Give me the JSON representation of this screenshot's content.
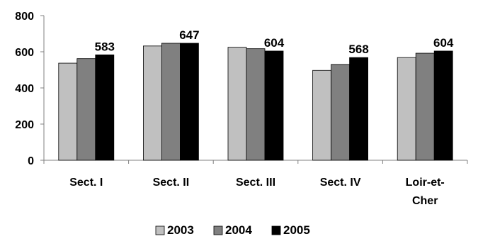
{
  "chart_data": {
    "type": "bar",
    "categories": [
      "Sect. I",
      "Sect. II",
      "Sect. III",
      "Sect. IV",
      "Loir-et-Cher"
    ],
    "category_lines": [
      [
        "Sect. I"
      ],
      [
        "Sect. II"
      ],
      [
        "Sect. III"
      ],
      [
        "Sect. IV"
      ],
      [
        "Loir-et-",
        "Cher"
      ]
    ],
    "series": [
      {
        "name": "2003",
        "values": [
          537,
          632,
          625,
          497,
          568
        ],
        "color": "#c0c0c0",
        "show_labels": false
      },
      {
        "name": "2004",
        "values": [
          562,
          647,
          617,
          530,
          592
        ],
        "color": "#808080",
        "show_labels": false
      },
      {
        "name": "2005",
        "values": [
          583,
          647,
          604,
          568,
          604
        ],
        "color": "#000000",
        "show_labels": true
      }
    ],
    "ylim": [
      0,
      800
    ],
    "yticks": [
      "0",
      "200",
      "400",
      "600",
      "800"
    ],
    "title": "",
    "xlabel": "",
    "ylabel": "",
    "grid": false,
    "legend_position": "bottom"
  }
}
